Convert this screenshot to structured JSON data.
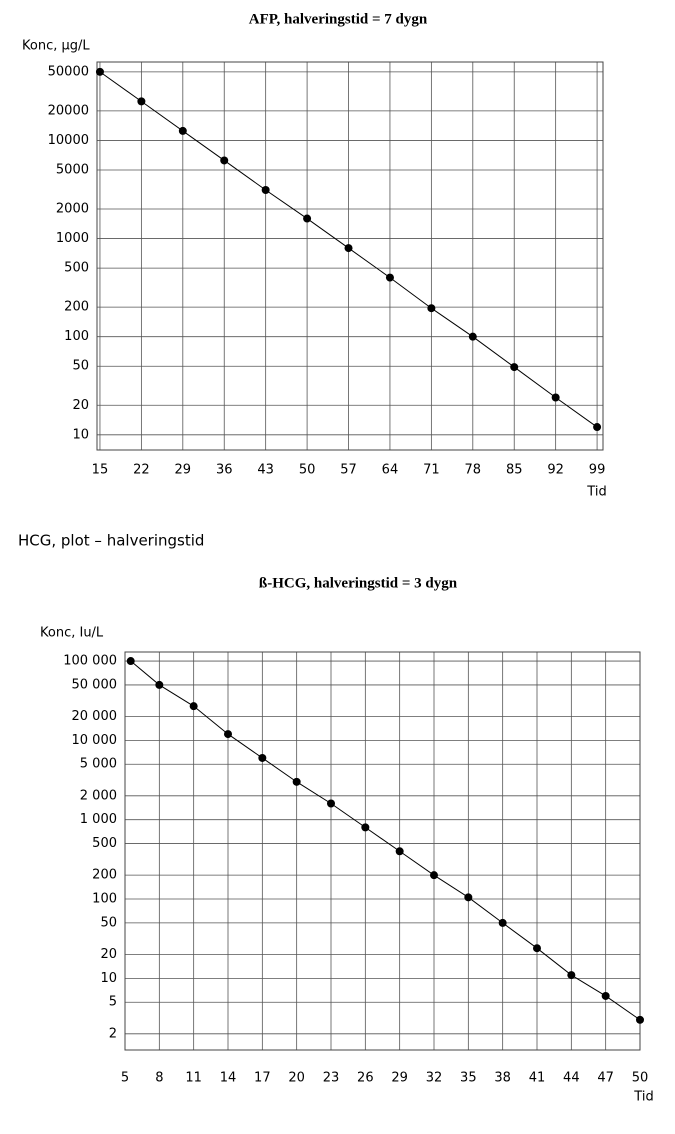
{
  "chart_data": [
    {
      "type": "line",
      "title": "AFP, halveringstid = 7 dygn",
      "y_label": "Konc, μg/L",
      "x_label": "Tid",
      "x": [
        15,
        22,
        29,
        36,
        43,
        50,
        57,
        64,
        71,
        78,
        85,
        92,
        99
      ],
      "series": [
        {
          "name": "AFP",
          "color": "#000000",
          "values": [
            50000,
            25000,
            12500,
            6250,
            3125,
            1600,
            800,
            400,
            195,
            100,
            49,
            24,
            12
          ]
        }
      ],
      "xlim": [
        14.5,
        100
      ],
      "xticks": [
        15,
        22,
        29,
        36,
        43,
        50,
        57,
        64,
        71,
        78,
        85,
        92,
        99
      ],
      "ylim": [
        7,
        63000
      ],
      "yticks": [
        50000,
        20000,
        10000,
        5000,
        2000,
        1000,
        500,
        200,
        100,
        50,
        20,
        10
      ],
      "log_y": true,
      "grid": true
    },
    {
      "type": "line",
      "title": "ß-HCG, halveringstid = 3 dygn",
      "y_label": "Konc, Iu/L",
      "x_label": "Tid",
      "x": [
        5.5,
        8,
        11,
        14,
        17,
        20,
        23,
        26,
        29,
        32,
        35,
        38,
        41,
        44,
        47,
        50
      ],
      "series": [
        {
          "name": "ß-HCG",
          "color": "#000000",
          "values": [
            100000,
            50000,
            27000,
            12000,
            6000,
            3000,
            1600,
            800,
            400,
            200,
            105,
            50,
            24,
            11,
            6,
            3
          ]
        }
      ],
      "xlim": [
        5,
        50
      ],
      "xticks": [
        5,
        8,
        11,
        14,
        17,
        20,
        23,
        26,
        29,
        32,
        35,
        38,
        41,
        44,
        47,
        50
      ],
      "ylim": [
        1.25,
        130000
      ],
      "yticks": [
        {
          "value": 100000,
          "label": "100 000"
        },
        {
          "value": 50000,
          "label": "50 000"
        },
        {
          "value": 20000,
          "label": "20 000"
        },
        {
          "value": 10000,
          "label": "10 000"
        },
        {
          "value": 5000,
          "label": "5 000"
        },
        {
          "value": 2000,
          "label": "2 000"
        },
        {
          "value": 1000,
          "label": "1 000"
        },
        500,
        200,
        100,
        50,
        20,
        10,
        5,
        2
      ],
      "log_y": true,
      "grid": true
    }
  ],
  "caption": "HCG, plot – halveringstid"
}
